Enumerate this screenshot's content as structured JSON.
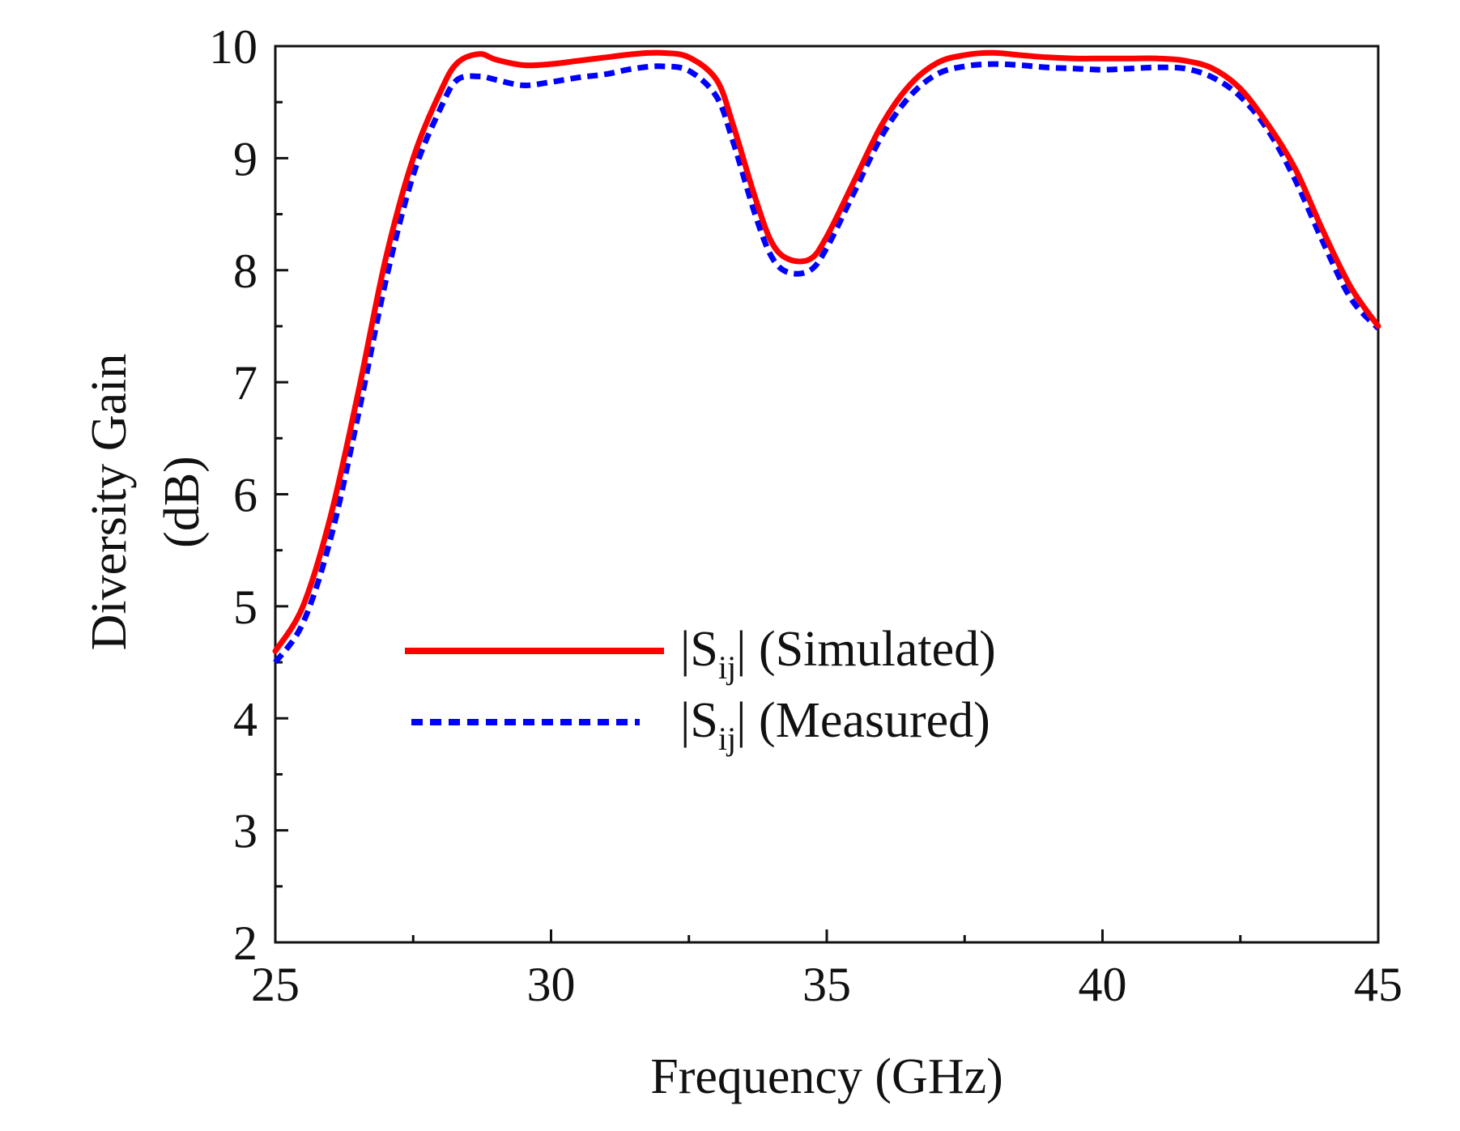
{
  "chart_data": {
    "type": "line",
    "title": "",
    "xlabel": "Frequency (GHz)",
    "ylabel_lines": [
      "Diversity Gain",
      "(dB)"
    ],
    "xlim": [
      25,
      45
    ],
    "ylim": [
      2,
      10
    ],
    "x_ticks": [
      25,
      30,
      35,
      40,
      45
    ],
    "y_ticks": [
      2,
      3,
      4,
      5,
      6,
      7,
      8,
      9,
      10
    ],
    "grid": false,
    "legend_position": "center-left",
    "series": [
      {
        "name": "|Sij| (Simulated)",
        "legend_main": "|S",
        "legend_sub": "ij",
        "legend_rest": "| (Simulated)",
        "color": "#ff0000",
        "style": "solid",
        "x": [
          25,
          25.5,
          26,
          26.5,
          27,
          27.5,
          28,
          28.3,
          28.7,
          29,
          29.5,
          30,
          30.5,
          31,
          31.5,
          32,
          32.5,
          33,
          33.3,
          33.7,
          34,
          34.3,
          34.7,
          35,
          35.5,
          36,
          36.5,
          37,
          37.5,
          38,
          38.5,
          39,
          39.5,
          40,
          40.5,
          41,
          41.5,
          42,
          42.5,
          43,
          43.5,
          44,
          44.5,
          45
        ],
        "y": [
          4.6,
          5.0,
          5.8,
          6.9,
          8.1,
          9.0,
          9.6,
          9.85,
          9.93,
          9.88,
          9.83,
          9.84,
          9.87,
          9.9,
          9.93,
          9.94,
          9.9,
          9.7,
          9.3,
          8.65,
          8.25,
          8.1,
          8.1,
          8.3,
          8.8,
          9.3,
          9.65,
          9.85,
          9.92,
          9.94,
          9.92,
          9.9,
          9.89,
          9.89,
          9.89,
          9.89,
          9.87,
          9.8,
          9.62,
          9.3,
          8.9,
          8.35,
          7.85,
          7.5
        ]
      },
      {
        "name": "|Sij| (Measured)",
        "legend_main": "|S",
        "legend_sub": "ij",
        "legend_rest": "| (Measured)",
        "color": "#0000ff",
        "style": "dashed",
        "x": [
          25,
          25.5,
          26,
          26.5,
          27,
          27.5,
          28,
          28.3,
          28.7,
          29,
          29.5,
          30,
          30.5,
          31,
          31.5,
          32,
          32.5,
          33,
          33.3,
          33.7,
          34,
          34.3,
          34.7,
          35,
          35.5,
          36,
          36.5,
          37,
          37.5,
          38,
          38.5,
          39,
          39.5,
          40,
          40.5,
          41,
          41.5,
          42,
          42.5,
          43,
          43.5,
          44,
          44.5,
          45
        ],
        "y": [
          4.5,
          4.85,
          5.6,
          6.7,
          7.9,
          8.85,
          9.45,
          9.7,
          9.73,
          9.7,
          9.65,
          9.68,
          9.72,
          9.75,
          9.8,
          9.82,
          9.78,
          9.55,
          9.15,
          8.5,
          8.12,
          7.98,
          8.0,
          8.2,
          8.7,
          9.2,
          9.55,
          9.75,
          9.82,
          9.84,
          9.83,
          9.81,
          9.8,
          9.79,
          9.8,
          9.81,
          9.8,
          9.72,
          9.55,
          9.25,
          8.8,
          8.25,
          7.75,
          7.48
        ]
      }
    ]
  }
}
